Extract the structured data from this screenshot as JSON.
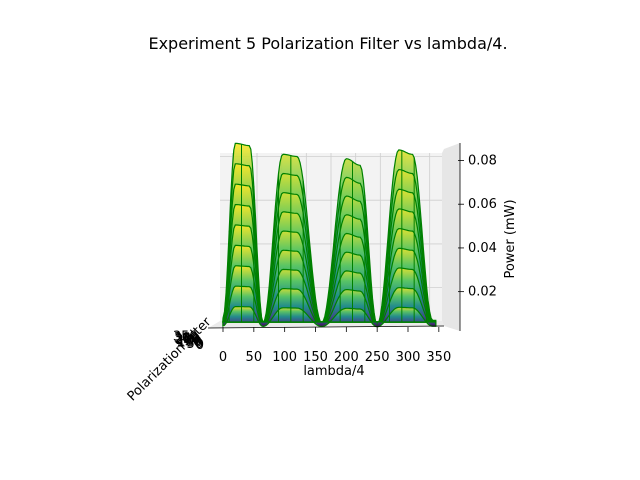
{
  "chart_data": {
    "type": "surface-3d",
    "title": "Experiment 5 Polarization Filter vs lambda/4.",
    "xlabel": "lambda/4",
    "ylabel": "Polarization Filter",
    "zlabel": "Power (mW)",
    "x_ticks": [
      "0",
      "50",
      "100",
      "150",
      "200",
      "250",
      "300",
      "350"
    ],
    "y_ticks": [
      "0",
      "50",
      "100",
      "150",
      "200",
      "250",
      "300",
      "350"
    ],
    "z_ticks": [
      "0.02",
      "0.04",
      "0.06",
      "0.08"
    ],
    "xlim": [
      0,
      360
    ],
    "zlim": [
      0.002,
      0.088
    ],
    "grid": true,
    "edge_color": "#008000",
    "colormap": "viridis",
    "peaks": [
      {
        "x": 20,
        "z": 0.086
      },
      {
        "x": 43,
        "z": 0.085
      },
      {
        "x": 97,
        "z": 0.081
      },
      {
        "x": 120,
        "z": 0.08
      },
      {
        "x": 200,
        "z": 0.079
      },
      {
        "x": 222,
        "z": 0.076
      },
      {
        "x": 285,
        "z": 0.083
      },
      {
        "x": 307,
        "z": 0.081
      }
    ],
    "troughs": [
      {
        "x": 0,
        "z": 0.006
      },
      {
        "x": 65,
        "z": 0.004
      },
      {
        "x": 160,
        "z": 0.004
      },
      {
        "x": 250,
        "z": 0.003
      },
      {
        "x": 340,
        "z": 0.005
      }
    ]
  }
}
